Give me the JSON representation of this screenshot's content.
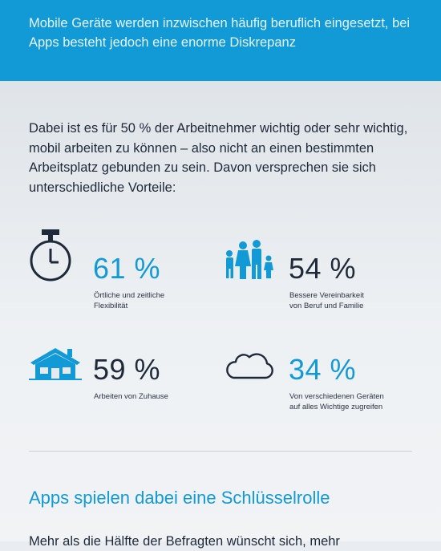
{
  "banner": {
    "text": "Mobile Geräte werden inzwischen häufig beruflich eingesetzt, bei Apps besteht jedoch eine enorme Diskrepanz"
  },
  "intro": {
    "text": "Dabei ist es für 50 % der Arbeitnehmer wichtig oder sehr wichtig, mobil arbeiten zu können – also nicht an einen bestimmten Arbeitsplatz gebunden zu sein. Davon versprechen sie sich unterschiedliche Vorteile:"
  },
  "stats": [
    {
      "icon": "stopwatch-icon",
      "value": "61 %",
      "label": "Örtliche und zeitliche\nFlexibilität",
      "value_color": "#129ad6"
    },
    {
      "icon": "family-icon",
      "value": "54 %",
      "label": "Bessere Vereinbarkeit\nvon Beruf und Familie",
      "value_color": "#1e2a3a"
    },
    {
      "icon": "house-icon",
      "value": "59 %",
      "label": "Arbeiten von Zuhause",
      "value_color": "#1e2a3a"
    },
    {
      "icon": "cloud-icon",
      "value": "34 %",
      "label": "Von verschiedenen Geräten\nauf alles Wichtige zugreifen",
      "value_color": "#129ad6"
    }
  ],
  "section": {
    "title": "Apps spielen dabei eine Schlüsselrolle",
    "text": "Mehr als die Hälfte der Befragten wünscht sich, mehr"
  },
  "colors": {
    "accent": "#129ad6",
    "dark": "#1e2a3a"
  }
}
